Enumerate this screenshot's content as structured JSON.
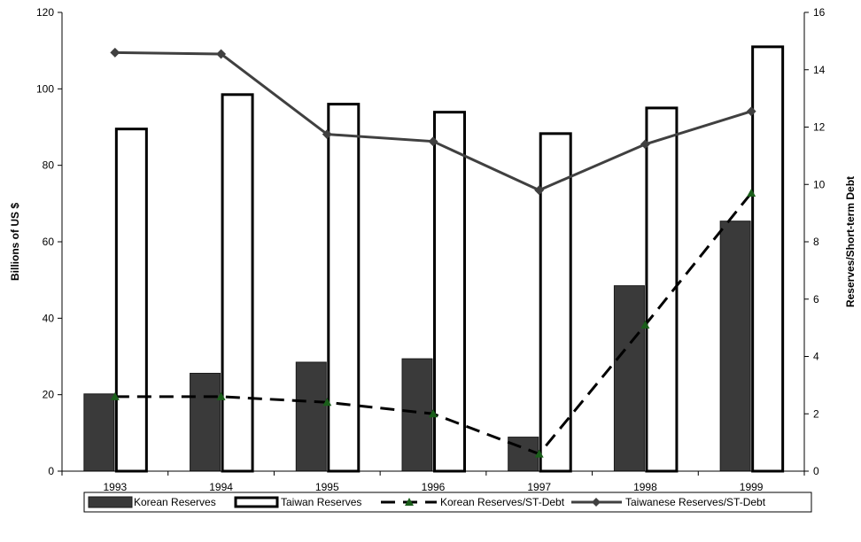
{
  "chart_data": {
    "type": "bar",
    "title": "",
    "xlabel": "",
    "ylabel": "Billions of US $",
    "y2label": "Reserves/Short-term Debt",
    "ylim": [
      0,
      120
    ],
    "y2lim": [
      0,
      16
    ],
    "yticks": [
      0,
      20,
      40,
      60,
      80,
      100,
      120
    ],
    "y2ticks": [
      0,
      2,
      4,
      6,
      8,
      10,
      12,
      14,
      16
    ],
    "grid": false,
    "legend_position": "bottom",
    "categories": [
      "1993",
      "1994",
      "1995",
      "1996",
      "1997",
      "1998",
      "1999"
    ],
    "series": [
      {
        "name": "Korean Reserves",
        "kind": "bar",
        "axis": "left",
        "color": "#3a3a3a",
        "values": [
          20.2,
          25.6,
          28.5,
          29.4,
          8.9,
          48.5,
          65.4
        ]
      },
      {
        "name": "Taiwan Reserves",
        "kind": "bar",
        "axis": "left",
        "color": "#ffffff",
        "values": [
          89.5,
          98.5,
          96.0,
          93.9,
          88.3,
          95.0,
          111.0
        ]
      },
      {
        "name": "Korean Reserves/ST-Debt",
        "kind": "line",
        "style": "dashed",
        "marker": "triangle",
        "axis": "right",
        "color": "#000000",
        "marker_color": "#1a5e1a",
        "values": [
          2.6,
          2.6,
          2.4,
          2.0,
          0.6,
          5.1,
          9.7
        ]
      },
      {
        "name": "Taiwanese Reserves/ST-Debt",
        "kind": "line",
        "style": "solid",
        "marker": "diamond",
        "axis": "right",
        "color": "#404040",
        "values": [
          14.6,
          14.55,
          11.75,
          11.5,
          9.8,
          11.4,
          12.55
        ]
      }
    ]
  }
}
